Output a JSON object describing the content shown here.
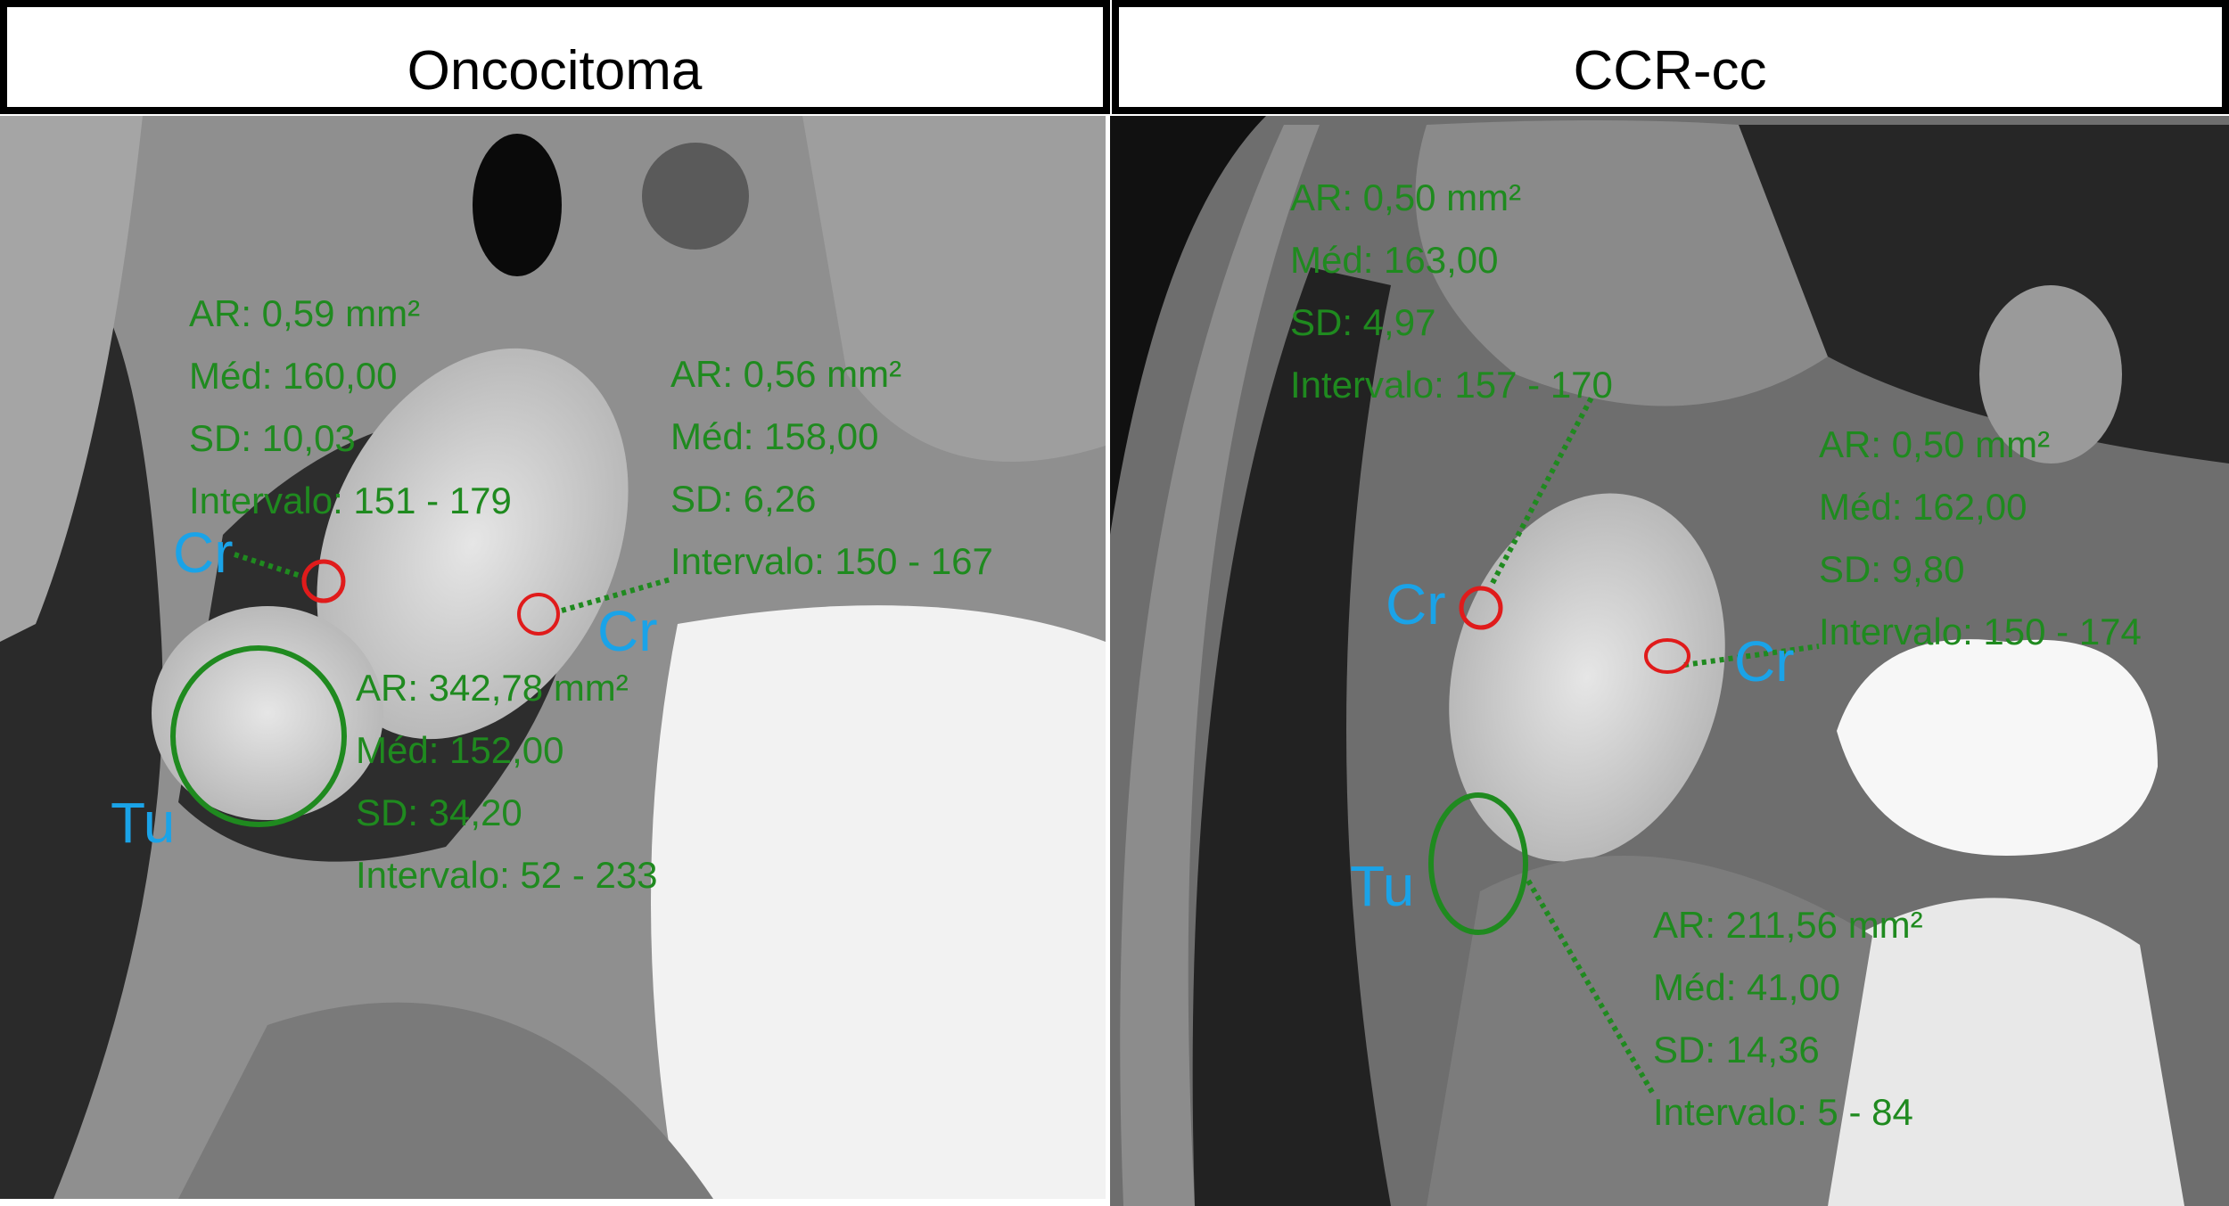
{
  "colors": {
    "measurement_text": "#1f8a1f",
    "roi_tumor": "#1f8a1f",
    "roi_cortex": "#e01b1b",
    "region_label": "#1aa3e8"
  },
  "panels": [
    {
      "title": "Oncocitoma",
      "labels": {
        "cr1": "Cr",
        "cr2": "Cr",
        "tu": "Tu"
      },
      "measurements": [
        {
          "ar": "AR: 0,59 mm²",
          "med": "Méd: 160,00",
          "sd": "SD: 10,03",
          "intervalo": "Intervalo: 151 - 179"
        },
        {
          "ar": "AR: 0,56 mm²",
          "med": "Méd: 158,00",
          "sd": "SD: 6,26",
          "intervalo": "Intervalo: 150 - 167"
        },
        {
          "ar": "AR: 342,78 mm²",
          "med": "Méd: 152,00",
          "sd": "SD: 34,20",
          "intervalo": "Intervalo: 52 - 233"
        }
      ]
    },
    {
      "title": "CCR-cc",
      "labels": {
        "cr1": "Cr",
        "cr2": "Cr",
        "tu": "Tu"
      },
      "measurements": [
        {
          "ar": "AR: 0,50 mm²",
          "med": "Méd: 163,00",
          "sd": "SD: 4,97",
          "intervalo": "Intervalo: 157 - 170"
        },
        {
          "ar": "AR: 0,50 mm²",
          "med": "Méd: 162,00",
          "sd": "SD: 9,80",
          "intervalo": "Intervalo: 150 - 174"
        },
        {
          "ar": "AR: 211,56 mm²",
          "med": "Méd: 41,00",
          "sd": "SD: 14,36",
          "intervalo": "Intervalo: 5 - 84"
        }
      ]
    }
  ]
}
